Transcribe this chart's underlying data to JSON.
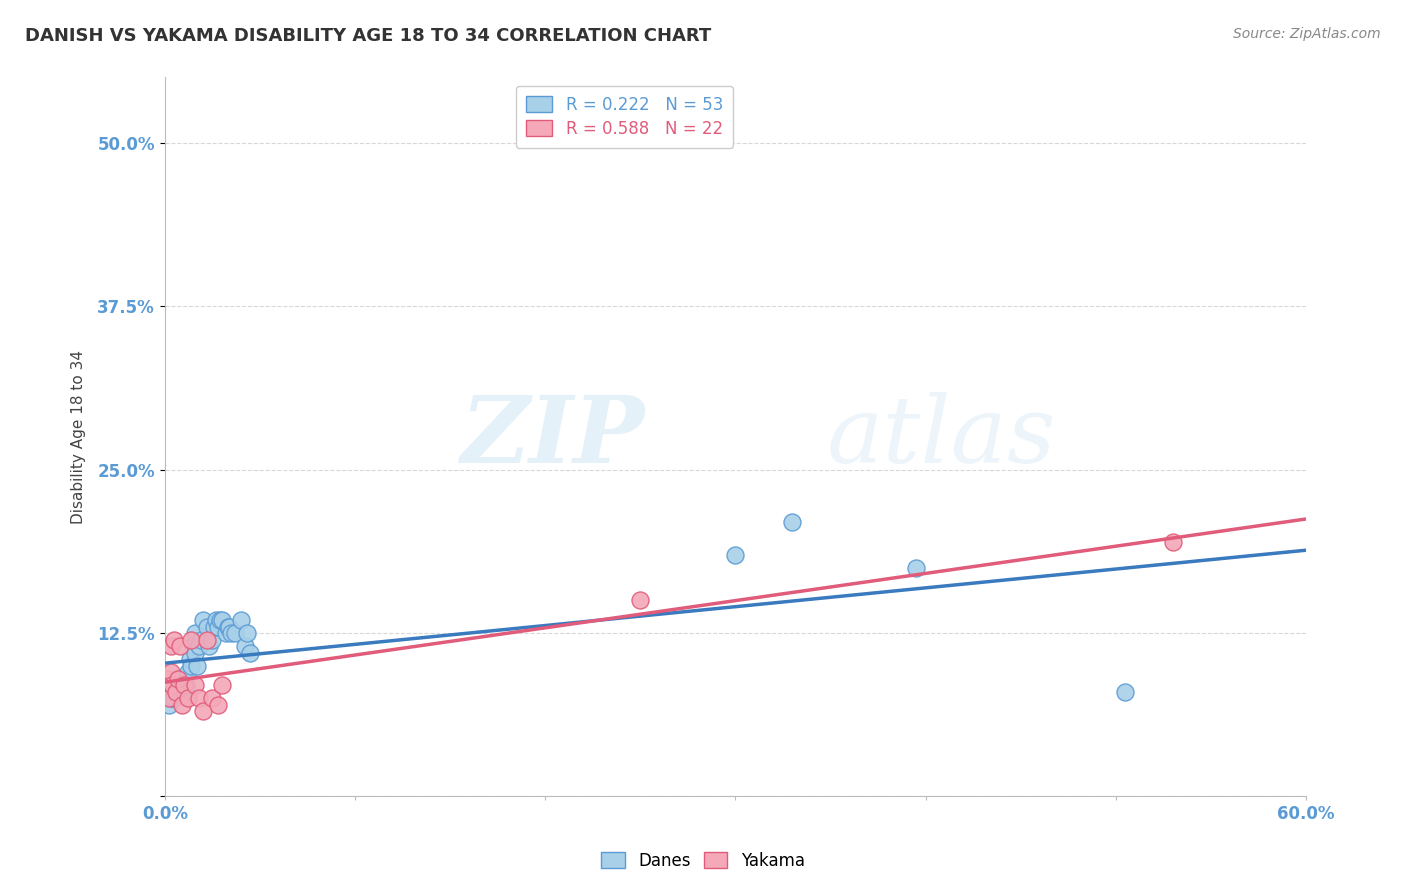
{
  "title": "DANISH VS YAKAMA DISABILITY AGE 18 TO 34 CORRELATION CHART",
  "source": "Source: ZipAtlas.com",
  "ylabel": "Disability Age 18 to 34",
  "xlabel": "",
  "xlim": [
    0.0,
    0.6
  ],
  "ylim": [
    0.0,
    0.55
  ],
  "yticks": [
    0.0,
    0.125,
    0.25,
    0.375,
    0.5
  ],
  "ytick_labels": [
    "",
    "12.5%",
    "25.0%",
    "37.5%",
    "50.0%"
  ],
  "xticks": [
    0.0,
    0.1,
    0.2,
    0.3,
    0.4,
    0.5,
    0.6
  ],
  "xtick_labels": [
    "0.0%",
    "",
    "",
    "",
    "",
    "",
    "60.0%"
  ],
  "danes_R": 0.222,
  "danes_N": 53,
  "yakama_R": 0.588,
  "yakama_N": 22,
  "danes_color": "#a8d0e8",
  "yakama_color": "#f4a8b8",
  "danes_edge_color": "#5b9bd5",
  "yakama_edge_color": "#e05c7a",
  "danes_trend_color": "#3a7abf",
  "yakama_trend_color": "#e05c7a",
  "danes_x": [
    0.001,
    0.002,
    0.002,
    0.003,
    0.003,
    0.004,
    0.004,
    0.005,
    0.005,
    0.005,
    0.006,
    0.006,
    0.007,
    0.007,
    0.008,
    0.008,
    0.009,
    0.009,
    0.009,
    0.01,
    0.01,
    0.011,
    0.012,
    0.013,
    0.014,
    0.015,
    0.016,
    0.016,
    0.017,
    0.018,
    0.019,
    0.02,
    0.022,
    0.023,
    0.025,
    0.026,
    0.027,
    0.028,
    0.029,
    0.03,
    0.032,
    0.033,
    0.034,
    0.035,
    0.037,
    0.04,
    0.042,
    0.043,
    0.045,
    0.3,
    0.33,
    0.395,
    0.505
  ],
  "danes_y": [
    0.08,
    0.075,
    0.07,
    0.085,
    0.08,
    0.075,
    0.085,
    0.08,
    0.075,
    0.085,
    0.085,
    0.09,
    0.085,
    0.09,
    0.09,
    0.085,
    0.085,
    0.09,
    0.08,
    0.09,
    0.08,
    0.085,
    0.095,
    0.105,
    0.1,
    0.115,
    0.11,
    0.125,
    0.1,
    0.115,
    0.12,
    0.135,
    0.13,
    0.115,
    0.12,
    0.13,
    0.135,
    0.13,
    0.135,
    0.135,
    0.125,
    0.13,
    0.13,
    0.125,
    0.125,
    0.135,
    0.115,
    0.125,
    0.11,
    0.185,
    0.21,
    0.175,
    0.08
  ],
  "yakama_x": [
    0.001,
    0.002,
    0.003,
    0.003,
    0.004,
    0.005,
    0.006,
    0.007,
    0.008,
    0.009,
    0.01,
    0.012,
    0.014,
    0.016,
    0.018,
    0.02,
    0.022,
    0.025,
    0.028,
    0.03,
    0.25,
    0.53
  ],
  "yakama_y": [
    0.09,
    0.075,
    0.095,
    0.115,
    0.085,
    0.12,
    0.08,
    0.09,
    0.115,
    0.07,
    0.085,
    0.075,
    0.12,
    0.085,
    0.075,
    0.065,
    0.12,
    0.075,
    0.07,
    0.085,
    0.15,
    0.195
  ],
  "danes_trend_xlim": [
    0.001,
    0.505
  ],
  "yakama_trend_xlim": [
    0.001,
    0.53
  ],
  "dashed_extension_xlim": [
    0.505,
    0.6
  ],
  "watermark_zip": "ZIP",
  "watermark_atlas": "atlas",
  "background_color": "#ffffff",
  "grid_color": "#d8d8d8"
}
